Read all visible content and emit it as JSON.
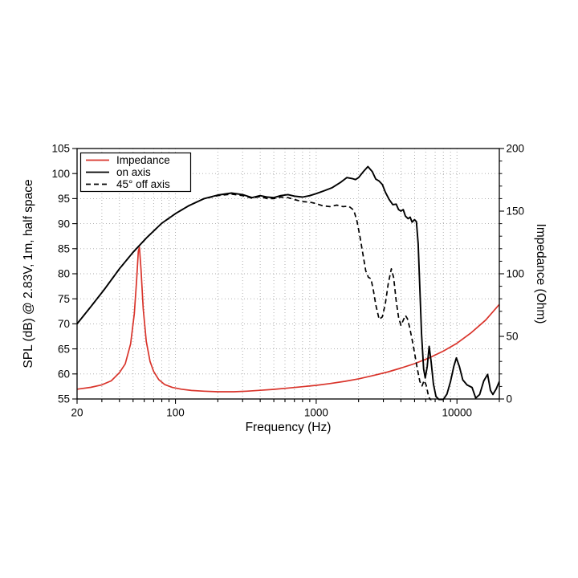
{
  "colors": {
    "impedance_red": "#d9342b",
    "trace_black": "#000000",
    "grid_gray": "#a8a8a8",
    "background": "#ffffff"
  },
  "chart_data": {
    "type": "line",
    "title": "",
    "xlabel": "Frequency (Hz)",
    "ylabel_left": "SPL (dB) @ 2.83V, 1m, half space",
    "ylabel_right": "Impedance (Ohm)",
    "x_scale": "log",
    "xlim": [
      20,
      20000
    ],
    "ylim_left": [
      55,
      105
    ],
    "ylim_right": [
      0,
      200
    ],
    "grid": "dotted",
    "x_ticks_labeled": [
      20,
      100,
      1000,
      10000
    ],
    "x_gridlines": [
      20,
      30,
      40,
      50,
      60,
      70,
      80,
      90,
      100,
      200,
      300,
      400,
      500,
      600,
      700,
      800,
      900,
      1000,
      2000,
      3000,
      4000,
      5000,
      6000,
      7000,
      8000,
      9000,
      10000,
      20000
    ],
    "y_ticks_left": [
      55,
      60,
      65,
      70,
      75,
      80,
      85,
      90,
      95,
      100,
      105
    ],
    "y_ticks_right": [
      0,
      50,
      100,
      150,
      200
    ],
    "y_minor_ticks_right": [
      10,
      20,
      30,
      40,
      60,
      70,
      80,
      90,
      110,
      120,
      130,
      140,
      160,
      170,
      180,
      190
    ],
    "legend": {
      "position": "top-left",
      "entries": [
        {
          "label": "Impedance",
          "color": "#d9342b",
          "dash": "none"
        },
        {
          "label": "on axis",
          "color": "#000000",
          "dash": "none"
        },
        {
          "label": "45° off axis",
          "color": "#000000",
          "dash": "6 4"
        }
      ]
    },
    "series": [
      {
        "name": "Impedance",
        "axis": "right",
        "unit": "Ohm",
        "color": "#d9342b",
        "dash": "none",
        "width": 1.7,
        "points": [
          [
            20,
            7.8
          ],
          [
            25,
            9.3
          ],
          [
            30,
            11.3
          ],
          [
            35,
            14.5
          ],
          [
            40,
            21
          ],
          [
            44,
            28
          ],
          [
            48,
            44
          ],
          [
            51,
            68
          ],
          [
            53,
            95
          ],
          [
            54.5,
            118
          ],
          [
            55.5,
            121
          ],
          [
            57,
            103
          ],
          [
            59,
            72
          ],
          [
            62,
            46
          ],
          [
            66,
            30
          ],
          [
            70,
            22
          ],
          [
            76,
            15.5
          ],
          [
            84,
            11.5
          ],
          [
            95,
            9.2
          ],
          [
            110,
            7.8
          ],
          [
            130,
            6.8
          ],
          [
            160,
            6.2
          ],
          [
            200,
            5.8
          ],
          [
            260,
            5.8
          ],
          [
            320,
            6.2
          ],
          [
            400,
            6.9
          ],
          [
            500,
            7.7
          ],
          [
            640,
            8.8
          ],
          [
            800,
            9.8
          ],
          [
            1000,
            10.9
          ],
          [
            1250,
            12.3
          ],
          [
            1600,
            14.1
          ],
          [
            2000,
            16.1
          ],
          [
            2500,
            18.5
          ],
          [
            3200,
            21.5
          ],
          [
            4000,
            24.7
          ],
          [
            5000,
            28.2
          ],
          [
            6300,
            32.6
          ],
          [
            8000,
            38.2
          ],
          [
            10000,
            44.5
          ],
          [
            12500,
            52.5
          ],
          [
            16000,
            63
          ],
          [
            20000,
            75.5
          ]
        ]
      },
      {
        "name": "on axis",
        "axis": "left",
        "unit": "dB",
        "color": "#000000",
        "dash": "none",
        "width": 1.9,
        "points": [
          [
            20,
            70.0
          ],
          [
            25,
            73.4
          ],
          [
            31.5,
            77.0
          ],
          [
            40,
            81.0
          ],
          [
            50,
            84.3
          ],
          [
            63,
            87.3
          ],
          [
            80,
            90.1
          ],
          [
            100,
            92.0
          ],
          [
            125,
            93.6
          ],
          [
            160,
            95.0
          ],
          [
            200,
            95.7
          ],
          [
            250,
            96.1
          ],
          [
            300,
            95.8
          ],
          [
            350,
            95.2
          ],
          [
            400,
            95.6
          ],
          [
            450,
            95.3
          ],
          [
            500,
            95.2
          ],
          [
            560,
            95.6
          ],
          [
            630,
            95.8
          ],
          [
            700,
            95.5
          ],
          [
            800,
            95.3
          ],
          [
            900,
            95.6
          ],
          [
            1000,
            96.0
          ],
          [
            1150,
            96.6
          ],
          [
            1300,
            97.2
          ],
          [
            1500,
            98.3
          ],
          [
            1650,
            99.2
          ],
          [
            1800,
            99.0
          ],
          [
            1900,
            98.8
          ],
          [
            2000,
            99.2
          ],
          [
            2150,
            100.3
          ],
          [
            2330,
            101.4
          ],
          [
            2500,
            100.4
          ],
          [
            2650,
            98.9
          ],
          [
            2800,
            98.5
          ],
          [
            2950,
            97.8
          ],
          [
            3100,
            96.3
          ],
          [
            3300,
            94.8
          ],
          [
            3500,
            93.8
          ],
          [
            3700,
            93.9
          ],
          [
            3850,
            92.8
          ],
          [
            4000,
            92.5
          ],
          [
            4150,
            92.8
          ],
          [
            4300,
            91.5
          ],
          [
            4500,
            91.0
          ],
          [
            4650,
            91.3
          ],
          [
            4800,
            90.3
          ],
          [
            5000,
            90.8
          ],
          [
            5150,
            90.4
          ],
          [
            5300,
            86.0
          ],
          [
            5450,
            77.0
          ],
          [
            5600,
            68.0
          ],
          [
            5800,
            61.0
          ],
          [
            5950,
            59.2
          ],
          [
            6150,
            61.5
          ],
          [
            6350,
            65.5
          ],
          [
            6550,
            62.5
          ],
          [
            6800,
            58.0
          ],
          [
            7100,
            55.5
          ],
          [
            7500,
            54.8
          ],
          [
            8000,
            54.9
          ],
          [
            8500,
            56.0
          ],
          [
            9000,
            58.5
          ],
          [
            9500,
            61.5
          ],
          [
            9900,
            63.2
          ],
          [
            10400,
            61.5
          ],
          [
            11000,
            58.8
          ],
          [
            11800,
            57.8
          ],
          [
            12800,
            57.3
          ],
          [
            13600,
            55.2
          ],
          [
            14500,
            55.9
          ],
          [
            15500,
            58.6
          ],
          [
            16500,
            59.9
          ],
          [
            17300,
            56.7
          ],
          [
            18000,
            55.9
          ],
          [
            19000,
            57.0
          ],
          [
            20000,
            58.5
          ]
        ]
      },
      {
        "name": "45° off axis",
        "axis": "left",
        "unit": "dB",
        "color": "#000000",
        "dash": "6 4",
        "width": 1.7,
        "points": [
          [
            20,
            70.0
          ],
          [
            25,
            73.4
          ],
          [
            31.5,
            77.0
          ],
          [
            40,
            81.0
          ],
          [
            50,
            84.3
          ],
          [
            63,
            87.3
          ],
          [
            80,
            90.1
          ],
          [
            100,
            92.0
          ],
          [
            125,
            93.6
          ],
          [
            160,
            95.0
          ],
          [
            200,
            95.6
          ],
          [
            250,
            95.9
          ],
          [
            300,
            95.6
          ],
          [
            350,
            95.1
          ],
          [
            400,
            95.4
          ],
          [
            450,
            95.0
          ],
          [
            500,
            95.0
          ],
          [
            560,
            95.3
          ],
          [
            630,
            95.2
          ],
          [
            700,
            94.8
          ],
          [
            800,
            94.4
          ],
          [
            900,
            94.3
          ],
          [
            1000,
            94.0
          ],
          [
            1100,
            93.6
          ],
          [
            1250,
            93.4
          ],
          [
            1400,
            93.7
          ],
          [
            1550,
            93.4
          ],
          [
            1700,
            93.5
          ],
          [
            1850,
            92.7
          ],
          [
            1950,
            90.5
          ],
          [
            2050,
            87.3
          ],
          [
            2150,
            83.8
          ],
          [
            2250,
            80.6
          ],
          [
            2350,
            79.3
          ],
          [
            2450,
            79.0
          ],
          [
            2550,
            76.6
          ],
          [
            2650,
            73.8
          ],
          [
            2800,
            70.9
          ],
          [
            2950,
            71.4
          ],
          [
            3100,
            74.0
          ],
          [
            3250,
            78.0
          ],
          [
            3420,
            81.0
          ],
          [
            3550,
            79.2
          ],
          [
            3700,
            74.6
          ],
          [
            3850,
            71.3
          ],
          [
            4000,
            69.7
          ],
          [
            4150,
            70.7
          ],
          [
            4300,
            71.7
          ],
          [
            4450,
            71.0
          ],
          [
            4600,
            69.4
          ],
          [
            4800,
            66.9
          ],
          [
            5000,
            64.2
          ],
          [
            5200,
            61.4
          ],
          [
            5450,
            58.5
          ],
          [
            5650,
            57.6
          ],
          [
            5850,
            58.7
          ],
          [
            6050,
            57.7
          ],
          [
            6300,
            55.4
          ],
          [
            6550,
            54.7
          ]
        ]
      }
    ]
  }
}
